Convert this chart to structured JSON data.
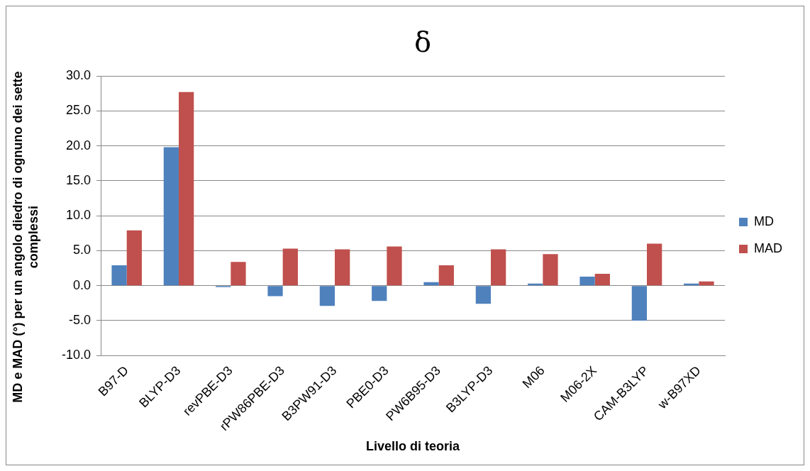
{
  "chart_data": {
    "type": "bar",
    "title": "δ",
    "xlabel": "Livello di teoria",
    "ylabel": "MD e MAD (°) per un angolo diedro di ognuno dei sette complessi",
    "categories": [
      "B97-D",
      "BLYP-D3",
      "revPBE-D3",
      "rPW86PBE-D3",
      "B3PW91-D3",
      "PBE0-D3",
      "PW6B95-D3",
      "B3LYP-D3",
      "M06",
      "M06-2X",
      "CAM-B3LYP",
      "w-B97XD"
    ],
    "series": [
      {
        "name": "MD",
        "color": "#4f81bd",
        "values": [
          2.9,
          19.8,
          -0.2,
          -1.5,
          -2.9,
          -2.2,
          0.5,
          -2.6,
          0.3,
          1.3,
          -5.0,
          0.3
        ]
      },
      {
        "name": "MAD",
        "color": "#c0504d",
        "values": [
          7.9,
          27.7,
          3.4,
          5.3,
          5.2,
          5.6,
          2.9,
          5.2,
          4.5,
          1.7,
          6.0,
          0.6
        ]
      }
    ],
    "ylim": [
      -10,
      30
    ],
    "yticks": [
      {
        "value": -10,
        "label": "-10.0"
      },
      {
        "value": -5,
        "label": "-5.0"
      },
      {
        "value": 0,
        "label": "0.0"
      },
      {
        "value": 5,
        "label": "5.0"
      },
      {
        "value": 10,
        "label": "10.0"
      },
      {
        "value": 15,
        "label": "15.0"
      },
      {
        "value": 20,
        "label": "20.0"
      },
      {
        "value": 25,
        "label": "25.0"
      },
      {
        "value": 30,
        "label": "30.0"
      }
    ],
    "grid": "y",
    "legend": "right"
  }
}
